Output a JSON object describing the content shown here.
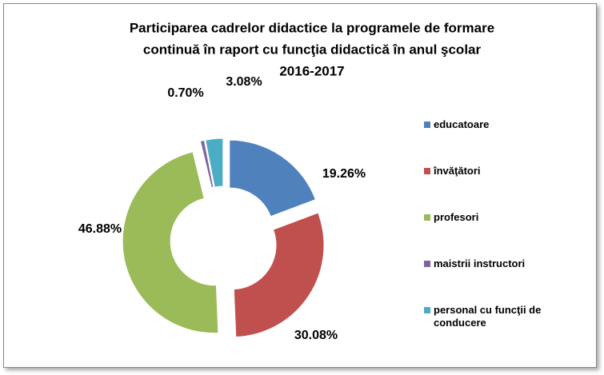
{
  "chart_data": {
    "type": "doughnut",
    "title": [
      "Participarea cadrelor didactice la programele de formare",
      "continuă în raport cu funcţia didactică în anul şcolar",
      "2016-2017"
    ],
    "categories": [
      "educatoare",
      "învăţători",
      "profesori",
      "maistrii instructori",
      "personal cu funcţii de conducere"
    ],
    "values": [
      19.26,
      30.08,
      46.88,
      0.7,
      3.08
    ],
    "value_labels": [
      "19.26%",
      "30.08%",
      "46.88%",
      "0.70%",
      "3.08%"
    ],
    "colors": [
      "#4f81bd",
      "#c0504d",
      "#9bbb59",
      "#8064a2",
      "#4bacc6"
    ],
    "legend": "right"
  }
}
